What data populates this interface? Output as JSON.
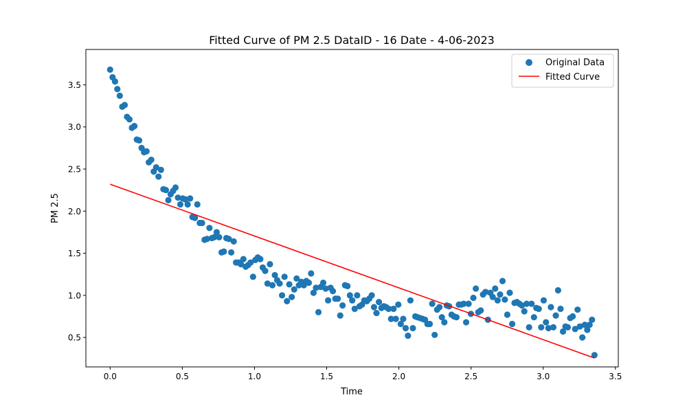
{
  "chart_data": {
    "type": "scatter",
    "title": "Fitted Curve of PM 2.5 DataID - 16 Date - 4-06-2023",
    "xlabel": "Time",
    "ylabel": "PM 2.5",
    "xlim": [
      -0.168,
      3.52
    ],
    "ylim": [
      0.15,
      3.92
    ],
    "x_ticks": [
      0.0,
      0.5,
      1.0,
      1.5,
      2.0,
      2.5,
      3.0,
      3.5
    ],
    "x_tick_labels": [
      "0.0",
      "0.5",
      "1.0",
      "1.5",
      "2.0",
      "2.5",
      "3.0",
      "3.5"
    ],
    "y_ticks": [
      0.5,
      1.0,
      1.5,
      2.0,
      2.5,
      3.0,
      3.5
    ],
    "y_tick_labels": [
      "0.5",
      "1.0",
      "1.5",
      "2.0",
      "2.5",
      "3.0",
      "3.5"
    ],
    "grid": false,
    "legend": {
      "position": "upper right",
      "entries": [
        {
          "label": "Original Data",
          "marker": "circle"
        },
        {
          "label": "Fitted Curve",
          "marker": "line"
        }
      ]
    },
    "colors": {
      "scatter": "#1f77b4",
      "line": "#ff0000"
    },
    "series": [
      {
        "name": "Original Data",
        "kind": "scatter",
        "x": [
          0.0,
          0.017,
          0.034,
          0.05,
          0.067,
          0.084,
          0.101,
          0.117,
          0.134,
          0.151,
          0.168,
          0.185,
          0.201,
          0.218,
          0.235,
          0.252,
          0.268,
          0.285,
          0.302,
          0.319,
          0.335,
          0.352,
          0.369,
          0.386,
          0.403,
          0.419,
          0.436,
          0.453,
          0.47,
          0.486,
          0.503,
          0.52,
          0.537,
          0.554,
          0.57,
          0.587,
          0.604,
          0.621,
          0.637,
          0.654,
          0.671,
          0.688,
          0.705,
          0.721,
          0.738,
          0.755,
          0.772,
          0.788,
          0.805,
          0.822,
          0.839,
          0.856,
          0.872,
          0.889,
          0.906,
          0.923,
          0.939,
          0.956,
          0.973,
          0.99,
          1.006,
          1.023,
          1.04,
          1.057,
          1.074,
          1.09,
          1.107,
          1.124,
          1.141,
          1.157,
          1.174,
          1.191,
          1.208,
          1.225,
          1.241,
          1.258,
          1.275,
          1.292,
          1.308,
          1.325,
          1.342,
          1.359,
          1.376,
          1.392,
          1.409,
          1.426,
          1.443,
          1.459,
          1.476,
          1.493,
          1.51,
          1.527,
          1.543,
          1.56,
          1.577,
          1.594,
          1.61,
          1.627,
          1.644,
          1.661,
          1.677,
          1.694,
          1.711,
          1.728,
          1.745,
          1.761,
          1.778,
          1.795,
          1.812,
          1.828,
          1.845,
          1.862,
          1.879,
          1.896,
          1.912,
          1.929,
          1.946,
          1.963,
          1.979,
          1.996,
          2.013,
          2.03,
          2.047,
          2.063,
          2.08,
          2.097,
          2.114,
          2.13,
          2.147,
          2.164,
          2.181,
          2.198,
          2.214,
          2.231,
          2.248,
          2.265,
          2.281,
          2.298,
          2.315,
          2.332,
          2.348,
          2.365,
          2.382,
          2.399,
          2.416,
          2.432,
          2.449,
          2.466,
          2.483,
          2.499,
          2.516,
          2.533,
          2.55,
          2.567,
          2.583,
          2.6,
          2.617,
          2.634,
          2.65,
          2.667,
          2.684,
          2.701,
          2.718,
          2.734,
          2.751,
          2.768,
          2.785,
          2.801,
          2.818,
          2.835,
          2.852,
          2.869,
          2.885,
          2.902,
          2.919,
          2.936,
          2.952,
          2.969,
          2.986,
          3.003,
          3.019,
          3.036,
          3.053,
          3.07,
          3.087,
          3.103,
          3.12,
          3.137,
          3.154,
          3.17,
          3.187,
          3.204,
          3.221,
          3.238,
          3.254,
          3.271,
          3.288,
          3.305,
          3.321,
          3.338,
          3.355
        ],
        "y": [
          3.68,
          3.59,
          3.54,
          3.45,
          3.37,
          3.24,
          3.26,
          3.12,
          3.09,
          2.99,
          3.01,
          2.85,
          2.84,
          2.75,
          2.7,
          2.71,
          2.58,
          2.61,
          2.47,
          2.52,
          2.41,
          2.49,
          2.26,
          2.25,
          2.13,
          2.2,
          2.24,
          2.28,
          2.16,
          2.08,
          2.15,
          2.14,
          2.08,
          2.15,
          1.93,
          1.92,
          2.08,
          1.86,
          1.86,
          1.66,
          1.67,
          1.8,
          1.68,
          1.69,
          1.75,
          1.69,
          1.51,
          1.52,
          1.68,
          1.67,
          1.51,
          1.64,
          1.39,
          1.39,
          1.37,
          1.43,
          1.34,
          1.36,
          1.39,
          1.22,
          1.42,
          1.45,
          1.43,
          1.33,
          1.29,
          1.14,
          1.37,
          1.12,
          1.24,
          1.18,
          1.14,
          1.0,
          1.22,
          0.93,
          1.13,
          0.98,
          1.07,
          1.2,
          1.12,
          1.16,
          1.12,
          1.17,
          1.15,
          1.26,
          1.03,
          1.09,
          0.8,
          1.1,
          1.15,
          1.08,
          0.94,
          1.09,
          1.05,
          0.96,
          0.96,
          0.76,
          0.88,
          1.12,
          1.11,
          1.0,
          0.94,
          0.84,
          1.0,
          0.87,
          0.89,
          0.94,
          0.93,
          0.96,
          1.0,
          0.86,
          0.79,
          0.92,
          0.85,
          0.87,
          0.86,
          0.84,
          0.72,
          0.84,
          0.72,
          0.89,
          0.66,
          0.72,
          0.61,
          0.52,
          0.94,
          0.61,
          0.75,
          0.74,
          0.73,
          0.72,
          0.71,
          0.66,
          0.66,
          0.9,
          0.53,
          0.83,
          0.86,
          0.74,
          0.68,
          0.88,
          0.87,
          0.77,
          0.75,
          0.74,
          0.89,
          0.89,
          0.9,
          0.68,
          0.9,
          0.78,
          0.97,
          1.08,
          0.8,
          0.82,
          1.01,
          1.04,
          0.71,
          1.03,
          0.98,
          1.08,
          0.94,
          1.01,
          1.17,
          0.95,
          0.77,
          1.03,
          0.66,
          0.91,
          0.92,
          0.9,
          0.88,
          0.81,
          0.9,
          0.62,
          0.9,
          0.74,
          0.85,
          0.84,
          0.62,
          0.94,
          0.68,
          0.61,
          0.86,
          0.62,
          0.76,
          1.06,
          0.84,
          0.57,
          0.63,
          0.62,
          0.73,
          0.75,
          0.6,
          0.83,
          0.63,
          0.5,
          0.65,
          0.59,
          0.65,
          0.71,
          0.29
        ]
      },
      {
        "name": "Fitted Curve",
        "kind": "line",
        "x": [
          0.0,
          3.355
        ],
        "y": [
          2.32,
          0.255
        ]
      }
    ]
  }
}
